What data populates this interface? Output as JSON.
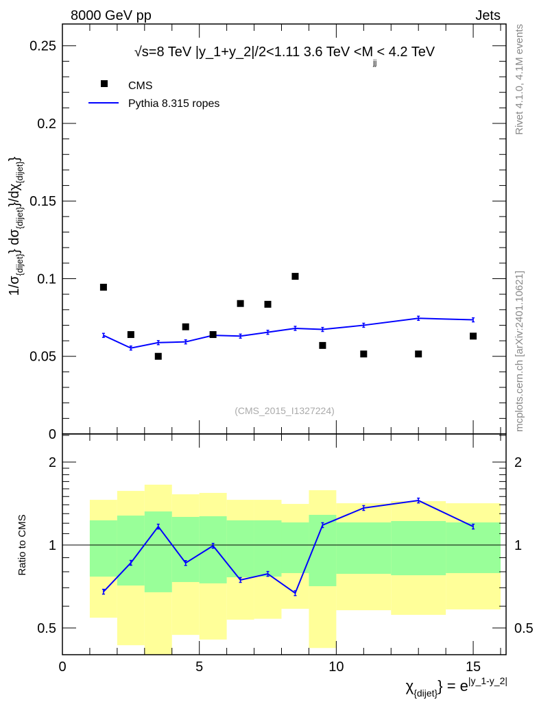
{
  "header": {
    "left": "8000 GeV pp",
    "right": "Jets"
  },
  "side_texts": {
    "rivet": "Rivet 4.1.0,  4.1M events",
    "mcplots": "mcplots.cern.ch [arXiv:2401.10621]"
  },
  "chart_data": [
    {
      "type": "scatter+line",
      "title": "√s=8 TeV |y_1+y_2|/2<1.11 3.6 TeV <M",
      "title_sub": "jj",
      "title_end": "< 4.2 TeV",
      "watermark": "(CMS_2015_I1327224)",
      "ylabel": {
        "pre": "1/σ",
        "sub1": "{dijet}",
        "mid": "} dσ",
        "sub2": "{dijet}",
        "mid2": "}/dχ",
        "sub3": "{dijet}",
        "end": "}"
      },
      "xlim": [
        0,
        16.2
      ],
      "ylim": [
        0,
        0.264
      ],
      "yticks": [
        0,
        0.05,
        0.1,
        0.15,
        0.2,
        0.25
      ],
      "ytick_labels": [
        "0",
        "0.05",
        "0.1",
        "0.15",
        "0.2",
        "0.25"
      ],
      "legend": {
        "placement": "top-left",
        "entries": [
          "CMS",
          "Pythia 8.315 ropes"
        ]
      },
      "x": [
        1.5,
        2.5,
        3.5,
        4.5,
        5.5,
        6.5,
        7.5,
        8.5,
        9.5,
        11,
        13,
        15
      ],
      "series": [
        {
          "name": "CMS",
          "values": [
            0.0945,
            0.064,
            0.05,
            0.069,
            0.064,
            0.084,
            0.0835,
            0.1015,
            0.057,
            0.0515,
            0.0515,
            0.063
          ],
          "color": "#000000"
        },
        {
          "name": "Pythia 8.315 ropes",
          "values": [
            0.0635,
            0.0553,
            0.0588,
            0.0593,
            0.0635,
            0.063,
            0.0655,
            0.068,
            0.0673,
            0.07,
            0.0745,
            0.0735
          ],
          "yerr": 0.0013,
          "color": "#0000ff"
        }
      ]
    },
    {
      "type": "line",
      "ylabel": "Ratio to CMS",
      "yscale": "log",
      "xlabel": {
        "chi": "χ",
        "sub": "{dijet}",
        "mid": "} = e",
        "sup": "|y_1-y_2|"
      },
      "xlim": [
        0,
        16.2
      ],
      "ylim": [
        0.4,
        2.53
      ],
      "xticks": [
        0,
        5,
        10,
        15
      ],
      "xtick_labels": [
        "0",
        "5",
        "10",
        "15"
      ],
      "yticks": [
        0.5,
        1,
        2
      ],
      "ytick_labels": [
        "0.5",
        "1",
        "2"
      ],
      "bin_edges": [
        1,
        2,
        3,
        4,
        5,
        6,
        7,
        8,
        9,
        10,
        12,
        14,
        16
      ],
      "band_outer": {
        "color": "#ffff99",
        "low": [
          0.545,
          0.433,
          0.38,
          0.472,
          0.454,
          0.536,
          0.54,
          0.587,
          0.423,
          0.58,
          0.558,
          0.584
        ],
        "high": [
          1.459,
          1.572,
          1.656,
          1.528,
          1.546,
          1.459,
          1.459,
          1.41,
          1.581,
          1.418,
          1.443,
          1.418
        ]
      },
      "band_inner": {
        "color": "#99ff99",
        "low": [
          0.768,
          0.713,
          0.674,
          0.734,
          0.726,
          0.764,
          0.768,
          0.791,
          0.709,
          0.786,
          0.777,
          0.791
        ],
        "high": [
          1.229,
          1.279,
          1.324,
          1.265,
          1.272,
          1.229,
          1.229,
          1.208,
          1.287,
          1.208,
          1.222,
          1.208
        ]
      },
      "x": [
        1.5,
        2.5,
        3.5,
        4.5,
        5.5,
        6.5,
        7.5,
        8.5,
        9.5,
        11,
        13,
        15
      ],
      "series": [
        {
          "name": "Pythia 8.315 ropes",
          "values": [
            0.677,
            0.862,
            1.167,
            0.861,
            0.994,
            0.747,
            0.786,
            0.669,
            1.181,
            1.363,
            1.451,
            1.167
          ],
          "yerr_frac": 0.02,
          "color": "#0000ff"
        }
      ]
    }
  ]
}
